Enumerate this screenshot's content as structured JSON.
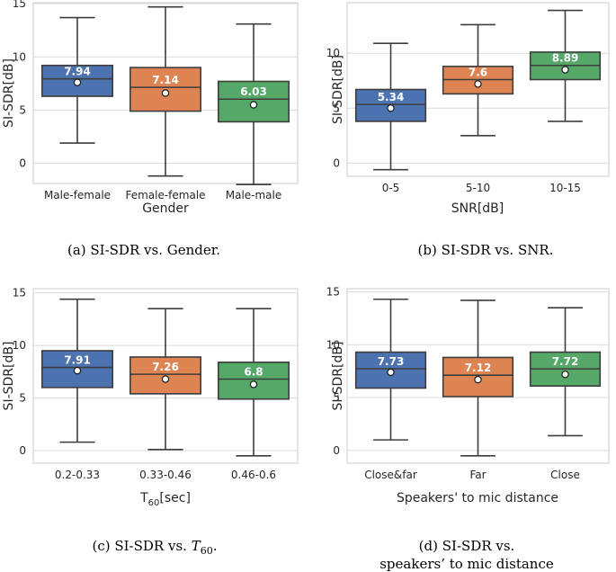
{
  "colors": {
    "blue": "#4c72b0",
    "orange": "#dd8452",
    "green": "#55a868",
    "grid": "#dcdcdc",
    "frame": "#cccccc",
    "line": "#3d3d3d"
  },
  "chart_data": [
    {
      "type": "box",
      "id": "a",
      "ylabel": "SI-SDR[dB]",
      "xlabel": "Gender",
      "caption": "(a) SI-SDR vs. Gender.",
      "ylim": [
        -1.9,
        15.1
      ],
      "yticks": [
        "0",
        "5",
        "10",
        "15"
      ],
      "categories": [
        "Male-female",
        "Female-female",
        "Male-male"
      ],
      "boxes": [
        {
          "name": "Male-female",
          "whislo": 1.9,
          "q1": 6.3,
          "med": 7.94,
          "q3": 9.2,
          "whishi": 13.7,
          "mean": 7.6,
          "med_label": "7.94",
          "color": "blue"
        },
        {
          "name": "Female-female",
          "whislo": -1.2,
          "q1": 4.9,
          "med": 7.14,
          "q3": 9.0,
          "whishi": 14.7,
          "mean": 6.6,
          "med_label": "7.14",
          "color": "orange"
        },
        {
          "name": "Male-male",
          "whislo": -2.0,
          "q1": 3.9,
          "med": 6.03,
          "q3": 7.7,
          "whishi": 13.1,
          "mean": 5.5,
          "med_label": "6.03",
          "color": "green"
        }
      ]
    },
    {
      "type": "box",
      "id": "b",
      "ylabel": "SI-SDR[dB]",
      "xlabel": "SNR[dB]",
      "caption": "(b) SI-SDR vs. SNR.",
      "ylim": [
        -1.2,
        14.6
      ],
      "yticks": [
        "0",
        "5",
        "10"
      ],
      "categories": [
        "0-5",
        "5-10",
        "10-15"
      ],
      "boxes": [
        {
          "name": "0-5",
          "whislo": -0.6,
          "q1": 3.8,
          "med": 5.34,
          "q3": 6.7,
          "whishi": 10.9,
          "mean": 5.0,
          "med_label": "5.34",
          "color": "blue"
        },
        {
          "name": "5-10",
          "whislo": 2.5,
          "q1": 6.3,
          "med": 7.6,
          "q3": 8.8,
          "whishi": 12.6,
          "mean": 7.2,
          "med_label": "7.6",
          "color": "orange"
        },
        {
          "name": "10-15",
          "whislo": 3.8,
          "q1": 7.6,
          "med": 8.89,
          "q3": 10.1,
          "whishi": 13.9,
          "mean": 8.5,
          "med_label": "8.89",
          "color": "green"
        }
      ]
    },
    {
      "type": "box",
      "id": "c",
      "ylabel": "SI-SDR[dB]",
      "xlabel": "T",
      "xlabel_sub": "60",
      "xlabel_rest": "[sec]",
      "caption_prefix": "(c) SI-SDR vs. ",
      "caption_var": "T",
      "caption_sub": "60",
      "caption_end": ".",
      "ylim": [
        -1.2,
        15.4
      ],
      "yticks": [
        "0",
        "5",
        "10",
        "15"
      ],
      "categories": [
        "0.2-0.33",
        "0.33-0.46",
        "0.46-0.6"
      ],
      "boxes": [
        {
          "name": "0.2-0.33",
          "whislo": 0.8,
          "q1": 6.0,
          "med": 7.91,
          "q3": 9.5,
          "whishi": 14.4,
          "mean": 7.6,
          "med_label": "7.91",
          "color": "blue"
        },
        {
          "name": "0.33-0.46",
          "whislo": 0.1,
          "q1": 5.4,
          "med": 7.26,
          "q3": 8.9,
          "whishi": 13.5,
          "mean": 6.8,
          "med_label": "7.26",
          "color": "orange"
        },
        {
          "name": "0.46-0.6",
          "whislo": -0.5,
          "q1": 4.9,
          "med": 6.8,
          "q3": 8.4,
          "whishi": 13.5,
          "mean": 6.3,
          "med_label": "6.8",
          "color": "green"
        }
      ]
    },
    {
      "type": "box",
      "id": "d",
      "ylabel": "SI-SDR[dB]",
      "xlabel": "Speakers' to mic distance",
      "caption": "(d) SI-SDR vs.",
      "caption2": "speakers’ to mic distance",
      "ylim": [
        -1.2,
        15.3
      ],
      "yticks": [
        "0",
        "5",
        "10",
        "15"
      ],
      "categories": [
        "Close&far",
        "Far",
        "Close"
      ],
      "boxes": [
        {
          "name": "Close&far",
          "whislo": 1.0,
          "q1": 5.9,
          "med": 7.73,
          "q3": 9.3,
          "whishi": 14.3,
          "mean": 7.4,
          "med_label": "7.73",
          "color": "blue"
        },
        {
          "name": "Far",
          "whislo": -0.5,
          "q1": 5.1,
          "med": 7.12,
          "q3": 8.8,
          "whishi": 14.2,
          "mean": 6.7,
          "med_label": "7.12",
          "color": "orange"
        },
        {
          "name": "Close",
          "whislo": 1.4,
          "q1": 6.1,
          "med": 7.72,
          "q3": 9.3,
          "whishi": 13.5,
          "mean": 7.2,
          "med_label": "7.72",
          "color": "green"
        }
      ]
    }
  ]
}
